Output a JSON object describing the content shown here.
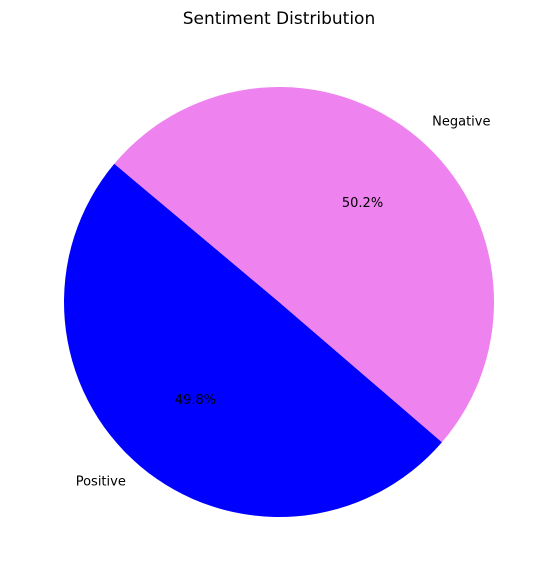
{
  "chart_data": {
    "type": "pie",
    "title": "Sentiment Distribution",
    "labels": [
      "Positive",
      "Negative"
    ],
    "values": [
      49.8,
      50.2
    ],
    "percent_labels": [
      "49.8%",
      "50.2%"
    ],
    "colors": [
      "#0000ff",
      "#ee82ee"
    ],
    "start_angle_deg": 140,
    "direction": "counterclockwise",
    "legend": "none"
  }
}
